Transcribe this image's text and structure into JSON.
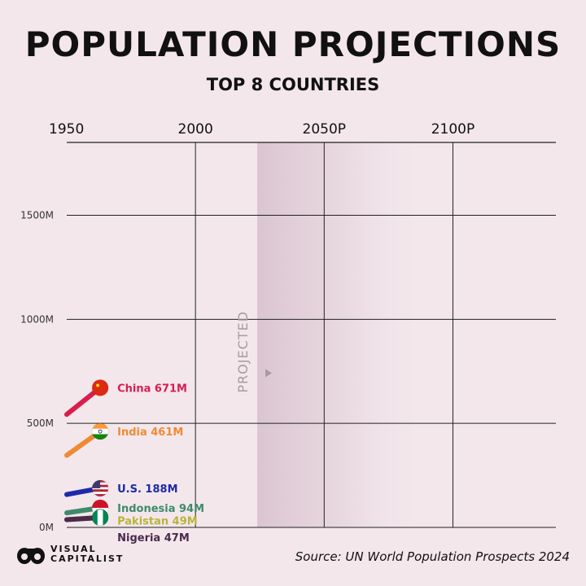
{
  "header": {
    "title": "POPULATION PROJECTIONS",
    "subtitle": "TOP 8 COUNTRIES"
  },
  "chart_data": {
    "type": "line",
    "title": "POPULATION PROJECTIONS",
    "subtitle": "TOP 8 COUNTRIES",
    "xlim": [
      1950,
      2140
    ],
    "ylim": [
      0,
      1850
    ],
    "x_ticks": [
      {
        "value": 1950,
        "label": "1950"
      },
      {
        "value": 2000,
        "label": "2000"
      },
      {
        "value": 2050,
        "label": "2050P"
      },
      {
        "value": 2100,
        "label": "2100P"
      }
    ],
    "y_ticks": [
      {
        "value": 0,
        "label": "0M"
      },
      {
        "value": 500,
        "label": "500M"
      },
      {
        "value": 1000,
        "label": "1000M"
      },
      {
        "value": 1500,
        "label": "1500M"
      }
    ],
    "projection_start": 2024,
    "projection_label": "PROJECTED",
    "grid": true,
    "legend": "inline labels at line ends",
    "series": [
      {
        "name": "China",
        "label": "China 671M",
        "color": "#d81e4f",
        "flag": "china-flag-icon",
        "points": [
          [
            1950,
            543
          ],
          [
            1963,
            671
          ]
        ]
      },
      {
        "name": "India",
        "label": "India 461M",
        "color": "#ef8a34",
        "flag": "india-flag-icon",
        "points": [
          [
            1950,
            346
          ],
          [
            1963,
            461
          ]
        ]
      },
      {
        "name": "U.S.",
        "label": "U.S. 188M",
        "color": "#1f2aa8",
        "flag": "us-flag-icon",
        "points": [
          [
            1950,
            158
          ],
          [
            1963,
            188
          ]
        ]
      },
      {
        "name": "Indonesia",
        "label": "Indonesia 94M",
        "color": "#3f8a6a",
        "flag": "indonesia-flag-icon",
        "points": [
          [
            1950,
            70
          ],
          [
            1963,
            94
          ]
        ]
      },
      {
        "name": "Pakistan",
        "label": "Pakistan 49M",
        "color": "#b9b43a",
        "flag": "pakistan-flag-icon",
        "points": [
          [
            1950,
            37
          ],
          [
            1963,
            49
          ]
        ]
      },
      {
        "name": "Nigeria",
        "label": "Nigeria 47M",
        "color": "#4b2a4c",
        "flag": "nigeria-flag-icon",
        "points": [
          [
            1950,
            37
          ],
          [
            1963,
            47
          ]
        ]
      }
    ]
  },
  "footer": {
    "logo_line1": "VISUAL",
    "logo_line2": "CAPITALIST",
    "source": "Source: UN World Population Prospects 2024"
  }
}
